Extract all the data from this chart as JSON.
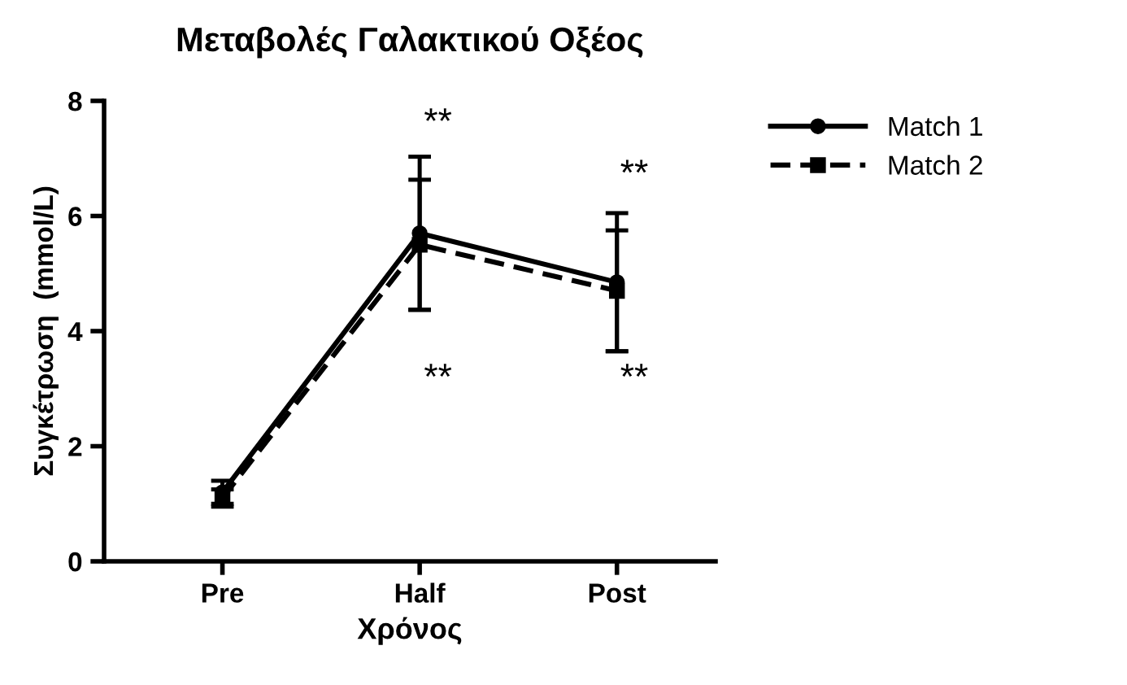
{
  "chart_data": {
    "type": "line",
    "title": "Μεταβολές Γαλακτικού Οξέος",
    "xlabel": "Χρόνος",
    "ylabel": "Συγκέτρωση  (mmol/L)",
    "categories": [
      "Pre",
      "Half",
      "Post"
    ],
    "series": [
      {
        "name": "Match 1",
        "color": "#000000",
        "values": [
          1.2,
          5.7,
          4.85
        ],
        "errors": [
          0.2,
          1.33,
          1.2
        ],
        "marker": "circle",
        "line_style": "solid"
      },
      {
        "name": "Match 2",
        "color": "#000000",
        "values": [
          1.1,
          5.5,
          4.7
        ],
        "errors": [
          0.15,
          1.13,
          1.05
        ],
        "marker": "square",
        "line_style": "dashed"
      }
    ],
    "ylim": [
      0,
      8
    ],
    "yticks": [
      0,
      2,
      4,
      6,
      8
    ],
    "grid": false,
    "legend": "right",
    "annotations": [
      "**",
      "**",
      "**",
      "**"
    ]
  }
}
